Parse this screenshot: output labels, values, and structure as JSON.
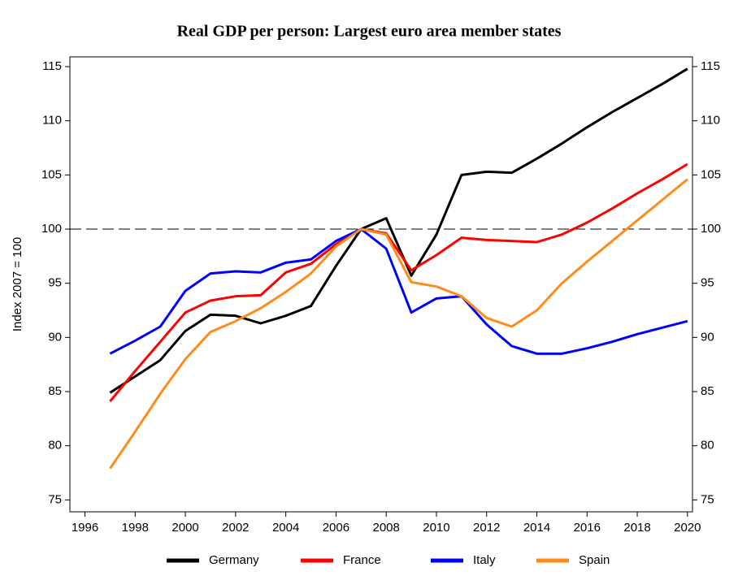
{
  "chart_data": {
    "type": "line",
    "title": "Real GDP per person: Largest euro area member states",
    "y_label": "Index 2007 = 100",
    "x": [
      1997,
      1998,
      1999,
      2000,
      2001,
      2002,
      2003,
      2004,
      2005,
      2006,
      2007,
      2008,
      2009,
      2010,
      2011,
      2012,
      2013,
      2014,
      2015,
      2016,
      2017,
      2018,
      2019,
      2020
    ],
    "series": [
      {
        "name": "Germany",
        "color": "#000000",
        "values": [
          84.9,
          86.4,
          87.9,
          90.6,
          92.1,
          92.0,
          91.3,
          92.0,
          92.9,
          96.6,
          100,
          101.0,
          95.7,
          99.5,
          105.0,
          105.3,
          105.2,
          106.5,
          107.9,
          109.4,
          110.8,
          112.1,
          113.4,
          114.8
        ]
      },
      {
        "name": "France",
        "color": "#ff0000",
        "values": [
          84.1,
          86.9,
          89.6,
          92.3,
          93.4,
          93.8,
          93.9,
          96.0,
          96.8,
          98.6,
          100,
          99.6,
          96.2,
          97.6,
          99.2,
          99.0,
          98.9,
          98.8,
          99.5,
          100.6,
          101.9,
          103.3,
          104.6,
          106.0
        ]
      },
      {
        "name": "Italy",
        "color": "#0000ff",
        "values": [
          88.5,
          89.7,
          91.0,
          94.3,
          95.9,
          96.1,
          96.0,
          96.9,
          97.2,
          98.9,
          100,
          98.2,
          92.3,
          93.6,
          93.8,
          91.2,
          89.2,
          88.5,
          88.5,
          89.0,
          89.6,
          90.3,
          90.9,
          91.5
        ]
      },
      {
        "name": "Spain",
        "color": "#ff8c1a",
        "values": [
          77.9,
          81.3,
          84.8,
          88.0,
          90.5,
          91.5,
          92.7,
          94.2,
          95.9,
          98.4,
          100,
          99.5,
          95.1,
          94.7,
          93.8,
          91.8,
          91.0,
          92.5,
          95.0,
          97.0,
          98.9,
          100.8,
          102.7,
          104.6
        ]
      }
    ],
    "xlim": [
      1995.4,
      2020.2
    ],
    "xticks": [
      1996,
      1998,
      2000,
      2002,
      2004,
      2006,
      2008,
      2010,
      2012,
      2014,
      2016,
      2018,
      2020
    ],
    "ylim": [
      73.9,
      115.9
    ],
    "yticks": [
      75,
      80,
      85,
      90,
      95,
      100,
      105,
      110,
      115
    ],
    "y2lim": [
      73.9,
      115.9
    ],
    "y2ticks": [
      75,
      80,
      85,
      90,
      95,
      100,
      105,
      110,
      115
    ],
    "reference_line": 100,
    "legend": "bottom"
  }
}
